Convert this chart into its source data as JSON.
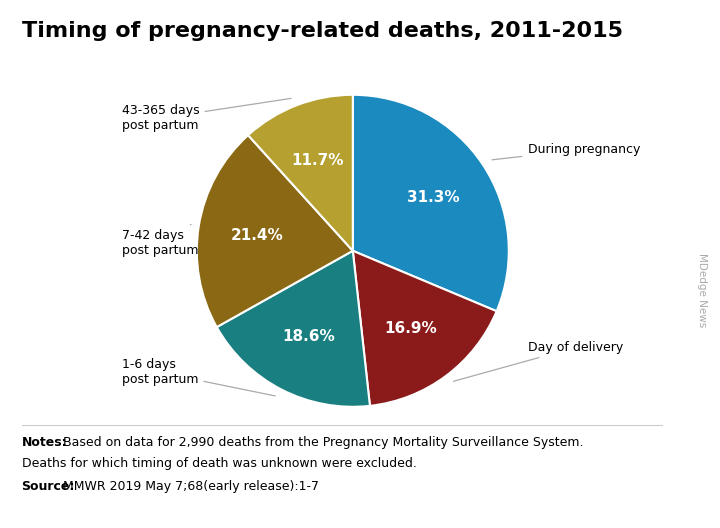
{
  "title": "Timing of pregnancy-related deaths, 2011-2015",
  "slices": [
    {
      "label": "During pregnancy",
      "pct_text": "31.3%",
      "value": 31.3,
      "color": "#1a8abf"
    },
    {
      "label": "Day of delivery",
      "pct_text": "16.9%",
      "value": 16.9,
      "color": "#8b1a1a"
    },
    {
      "label": "1-6 days\npost partum",
      "pct_text": "18.6%",
      "value": 18.6,
      "color": "#1a7f80"
    },
    {
      "label": "7-42 days\npost partum",
      "pct_text": "21.4%",
      "value": 21.4,
      "color": "#8b6914"
    },
    {
      "label": "43-365 days\npost partum",
      "pct_text": "11.7%",
      "value": 11.7,
      "color": "#b5a030"
    }
  ],
  "start_angle": 90,
  "note_bold": "Notes:",
  "note_rest": " Based on data for 2,990 deaths from the Pregnancy Mortality Surveillance System.\nDeaths for which timing of death was unknown were excluded.",
  "source_bold": "Source:",
  "source_rest": " MMWR 2019 May 7;68(early release):1-7",
  "watermark": "MDedge News",
  "bg_color": "#ffffff",
  "text_color": "#000000",
  "annotation_color": "#aaaaaa",
  "title_fontsize": 16,
  "pct_fontsize": 11,
  "annotation_fontsize": 9,
  "note_fontsize": 9
}
